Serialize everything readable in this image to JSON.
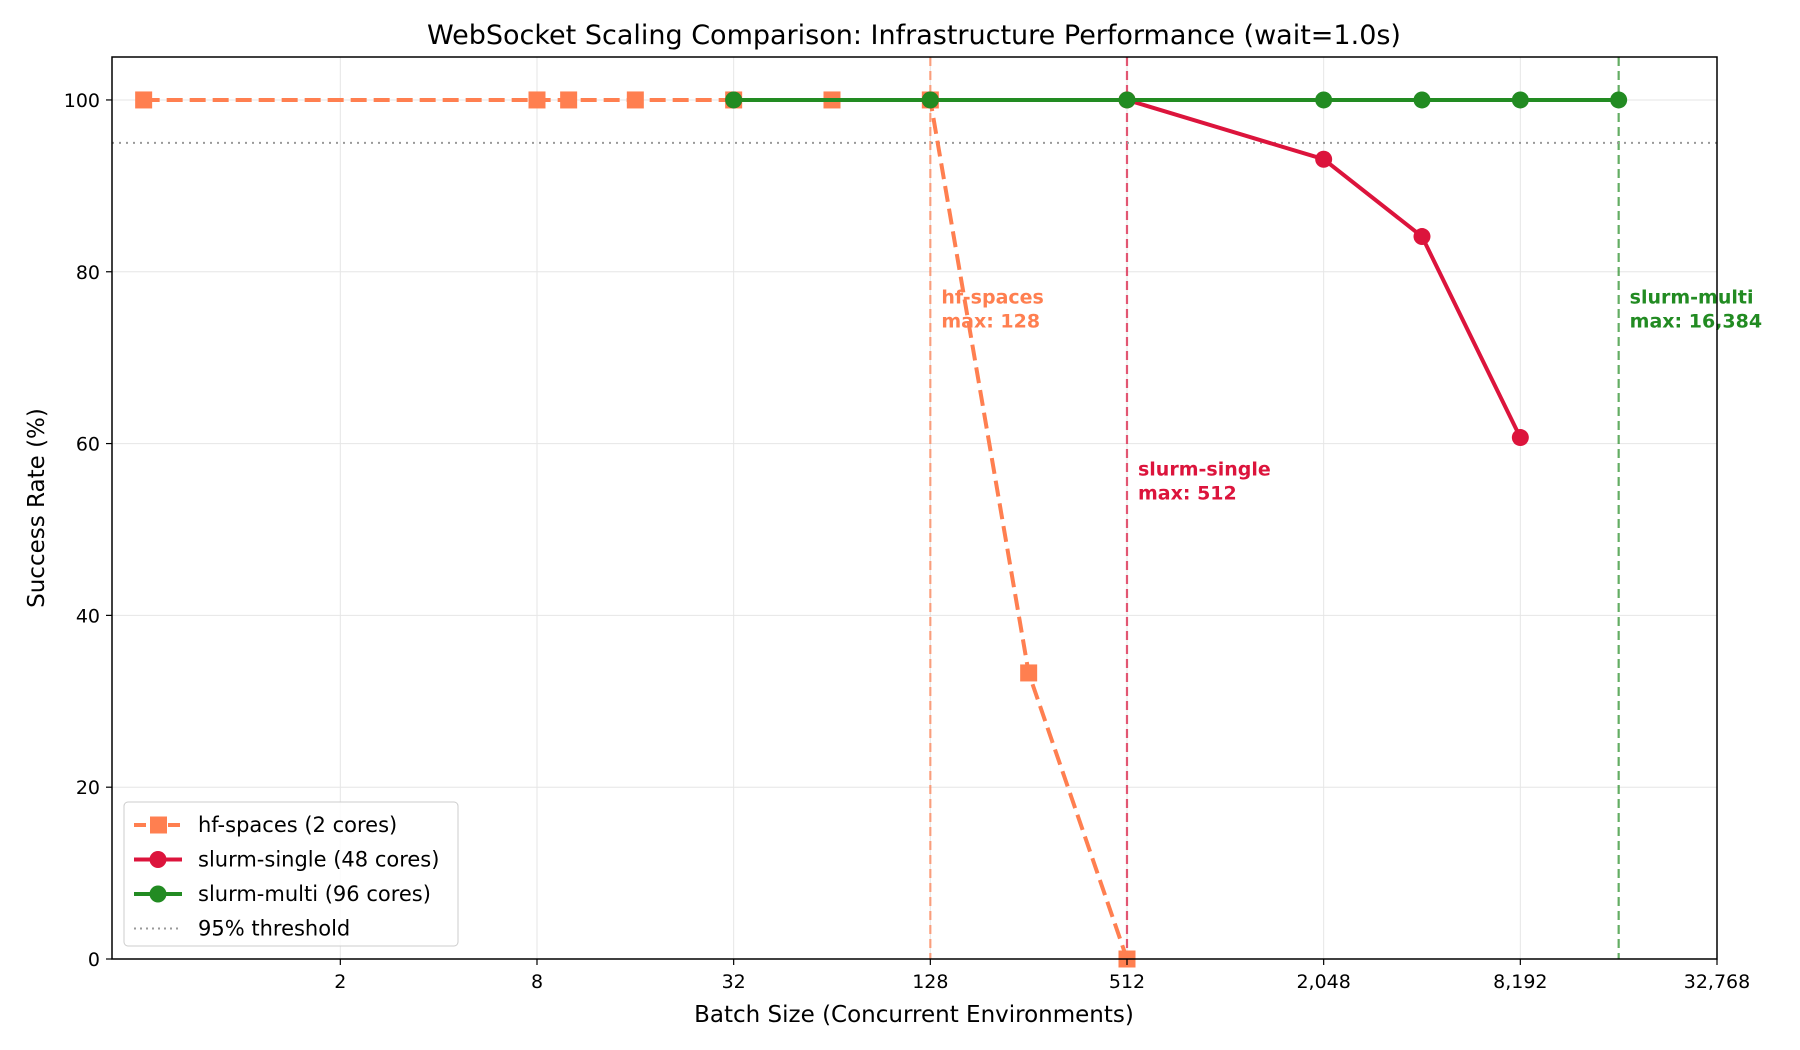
{
  "chart_data": {
    "type": "line",
    "title": "WebSocket Scaling Comparison: Infrastructure Performance (wait=1.0s)",
    "xlabel": "Batch Size (Concurrent Environments)",
    "ylabel": "Success Rate (%)",
    "x_scale": "log2",
    "xlim": [
      0.4,
      32768
    ],
    "ylim": [
      0,
      105
    ],
    "x_ticks": [
      2,
      8,
      32,
      128,
      512,
      2048,
      8192,
      32768
    ],
    "x_tick_labels": [
      "2",
      "8",
      "32",
      "128",
      "512",
      "2,048",
      "8,192",
      "32,768"
    ],
    "y_ticks": [
      0,
      20,
      40,
      60,
      80,
      100
    ],
    "y_tick_labels": [
      "0",
      "20",
      "40",
      "60",
      "80",
      "100"
    ],
    "grid": true,
    "legend_position": "lower-left",
    "series": [
      {
        "name": "hf-spaces (2 cores)",
        "color": "#FF7F50",
        "marker": "square",
        "linestyle": "dashed",
        "x": [
          0.5,
          8,
          10,
          16,
          32,
          64,
          128,
          256,
          512
        ],
        "values": [
          100,
          100,
          100,
          100,
          100,
          100,
          100,
          33.3,
          0
        ]
      },
      {
        "name": "slurm-single (48 cores)",
        "color": "#DC143C",
        "marker": "circle",
        "linestyle": "solid",
        "x": [
          32,
          128,
          512,
          2048,
          4096,
          8192
        ],
        "values": [
          100,
          100,
          100,
          93.1,
          84.1,
          60.7
        ]
      },
      {
        "name": "slurm-multi (96 cores)",
        "color": "#228B22",
        "marker": "circle",
        "linestyle": "solid",
        "x": [
          32,
          128,
          512,
          2048,
          4096,
          8192,
          16384
        ],
        "values": [
          100,
          100,
          100,
          100,
          100,
          100,
          100
        ]
      }
    ],
    "threshold": {
      "label": "95% threshold",
      "value": 95,
      "color": "#999999"
    },
    "max_lines": [
      {
        "name": "hf-spaces",
        "x": 128,
        "color": "#FF7F50",
        "label_line1": "hf-spaces",
        "label_line2": "max: 128",
        "label_y": 75
      },
      {
        "name": "slurm-single",
        "x": 512,
        "color": "#DC143C",
        "label_line1": "slurm-single",
        "label_line2": "max: 512",
        "label_y": 55
      },
      {
        "name": "slurm-multi",
        "x": 16384,
        "color": "#228B22",
        "label_line1": "slurm-multi",
        "label_line2": "max: 16,384",
        "label_y": 75
      }
    ]
  }
}
